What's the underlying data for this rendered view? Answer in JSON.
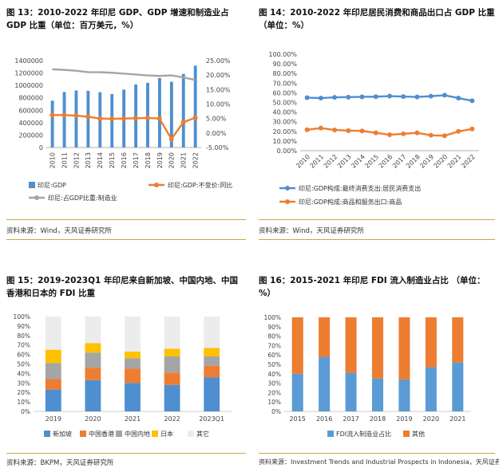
{
  "panels": [
    {
      "title": "图 13：2010-2022 年印尼 GDP、GDP 增速和制造业占 GDP 比重（单位：百万美元，%）",
      "source": "资料来源：Wind，天风证券研究所"
    },
    {
      "title": "图 14：2010-2022 年印尼居民消费和商品出口占 GDP 比重（单位：%）",
      "source": "资料来源：Wind，天风证券研究所"
    },
    {
      "title": "图 15：2019-2023Q1 年印尼来自新加坡、中国内地、中国香港和日本的 FDI 比重",
      "source": "资料来源：BKPM，天风证券研究所"
    },
    {
      "title": "图 16：2015-2021 年印尼 FDI 流入制造业占比 （单位：%）",
      "source": "资料来源：Investment Trends and Industrial Prospects in Indonesia，天风证券研究所"
    }
  ],
  "chart_data": [
    {
      "type": "bar",
      "categories": [
        "2010",
        "2011",
        "2012",
        "2013",
        "2014",
        "2015",
        "2016",
        "2017",
        "2018",
        "2019",
        "2020",
        "2021",
        "2022"
      ],
      "series": [
        {
          "name": "印尼:GDP",
          "axis": "left",
          "type": "bar",
          "color": "#4f8fd0",
          "values": [
            755000,
            893000,
            918000,
            913000,
            891000,
            861000,
            932000,
            1016000,
            1042000,
            1119000,
            1059000,
            1186000,
            1319000
          ]
        },
        {
          "name": "印尼:GDP:不变价:同比",
          "axis": "right",
          "type": "line",
          "color": "#ed7d31",
          "values": [
            6.2,
            6.2,
            6.0,
            5.6,
            5.0,
            4.9,
            5.0,
            5.1,
            5.2,
            5.0,
            -2.1,
            3.7,
            5.3
          ]
        },
        {
          "name": "印尼:占GDP比重:制造业",
          "axis": "right",
          "type": "line",
          "color": "#a5a5a5",
          "values": [
            22.0,
            21.8,
            21.5,
            21.0,
            21.0,
            20.8,
            20.5,
            20.2,
            19.9,
            19.7,
            19.9,
            19.2,
            18.3
          ]
        }
      ],
      "y_left": {
        "ticks": [
          "0",
          "200000",
          "400000",
          "600000",
          "800000",
          "1000000",
          "1200000",
          "1400000"
        ],
        "ylim": [
          0,
          1400000
        ]
      },
      "y_right": {
        "ticks": [
          "-5.00%",
          "0.00%",
          "5.00%",
          "10.00%",
          "15.00%",
          "20.00%",
          "25.00%"
        ],
        "ylim": [
          -5,
          25
        ]
      },
      "legend": "bottom"
    },
    {
      "type": "line",
      "categories": [
        "2010",
        "2011",
        "2012",
        "2013",
        "2014",
        "2015",
        "2016",
        "2017",
        "2018",
        "2019",
        "2020",
        "2021",
        "2022"
      ],
      "series": [
        {
          "name": "印尼:GDP构成:最终消费支出:居民消费支出",
          "color": "#4f8fd0",
          "values": [
            55.0,
            54.5,
            55.3,
            55.5,
            55.8,
            56.0,
            56.6,
            56.1,
            55.7,
            56.5,
            57.5,
            54.5,
            51.8
          ]
        },
        {
          "name": "印尼:GDP构成:商品和服务出口:商品",
          "color": "#ed7d31",
          "values": [
            21.7,
            23.4,
            21.5,
            20.8,
            20.5,
            18.5,
            16.5,
            17.5,
            18.5,
            16.0,
            15.5,
            20.0,
            22.5
          ]
        }
      ],
      "y_ticks": [
        "0.00%",
        "10.00%",
        "20.00%",
        "30.00%",
        "40.00%",
        "50.00%",
        "60.00%",
        "70.00%",
        "80.00%",
        "90.00%",
        "100.00%"
      ],
      "ylim": [
        0,
        100
      ],
      "legend": "bottom"
    },
    {
      "type": "bar",
      "stacked": true,
      "categories": [
        "2019",
        "2020",
        "2021",
        "2022",
        "2023Q1"
      ],
      "series": [
        {
          "name": "新加坡",
          "color": "#4f8fd0",
          "values": [
            23,
            33,
            30,
            28,
            36
          ]
        },
        {
          "name": "中国香港",
          "color": "#ed7d31",
          "values": [
            11,
            13,
            15,
            13,
            12
          ]
        },
        {
          "name": "中国内地",
          "color": "#a5a5a5",
          "values": [
            17,
            16,
            11,
            17,
            10
          ]
        },
        {
          "name": "日本",
          "color": "#ffc000",
          "values": [
            14,
            10,
            7,
            8,
            9
          ]
        },
        {
          "name": "其它",
          "color": "#ececec",
          "values": [
            35,
            28,
            37,
            34,
            33
          ]
        }
      ],
      "y_ticks": [
        "0%",
        "10%",
        "20%",
        "30%",
        "40%",
        "50%",
        "60%",
        "70%",
        "80%",
        "90%",
        "100%"
      ],
      "ylim": [
        0,
        100
      ],
      "legend": "bottom"
    },
    {
      "type": "bar",
      "stacked": true,
      "categories": [
        "2015",
        "2016",
        "2017",
        "2018",
        "2019",
        "2020",
        "2021"
      ],
      "series": [
        {
          "name": "FDI流入制造业占比",
          "color": "#5b9bd5",
          "values": [
            40,
            58,
            41,
            35,
            34,
            47,
            52
          ]
        },
        {
          "name": "其他",
          "color": "#ed7d31",
          "values": [
            60,
            42,
            59,
            65,
            66,
            53,
            48
          ]
        }
      ],
      "y_ticks": [
        "0%",
        "10%",
        "20%",
        "30%",
        "40%",
        "50%",
        "60%",
        "70%",
        "80%",
        "90%",
        "100%"
      ],
      "ylim": [
        0,
        100
      ],
      "legend": "bottom"
    }
  ]
}
